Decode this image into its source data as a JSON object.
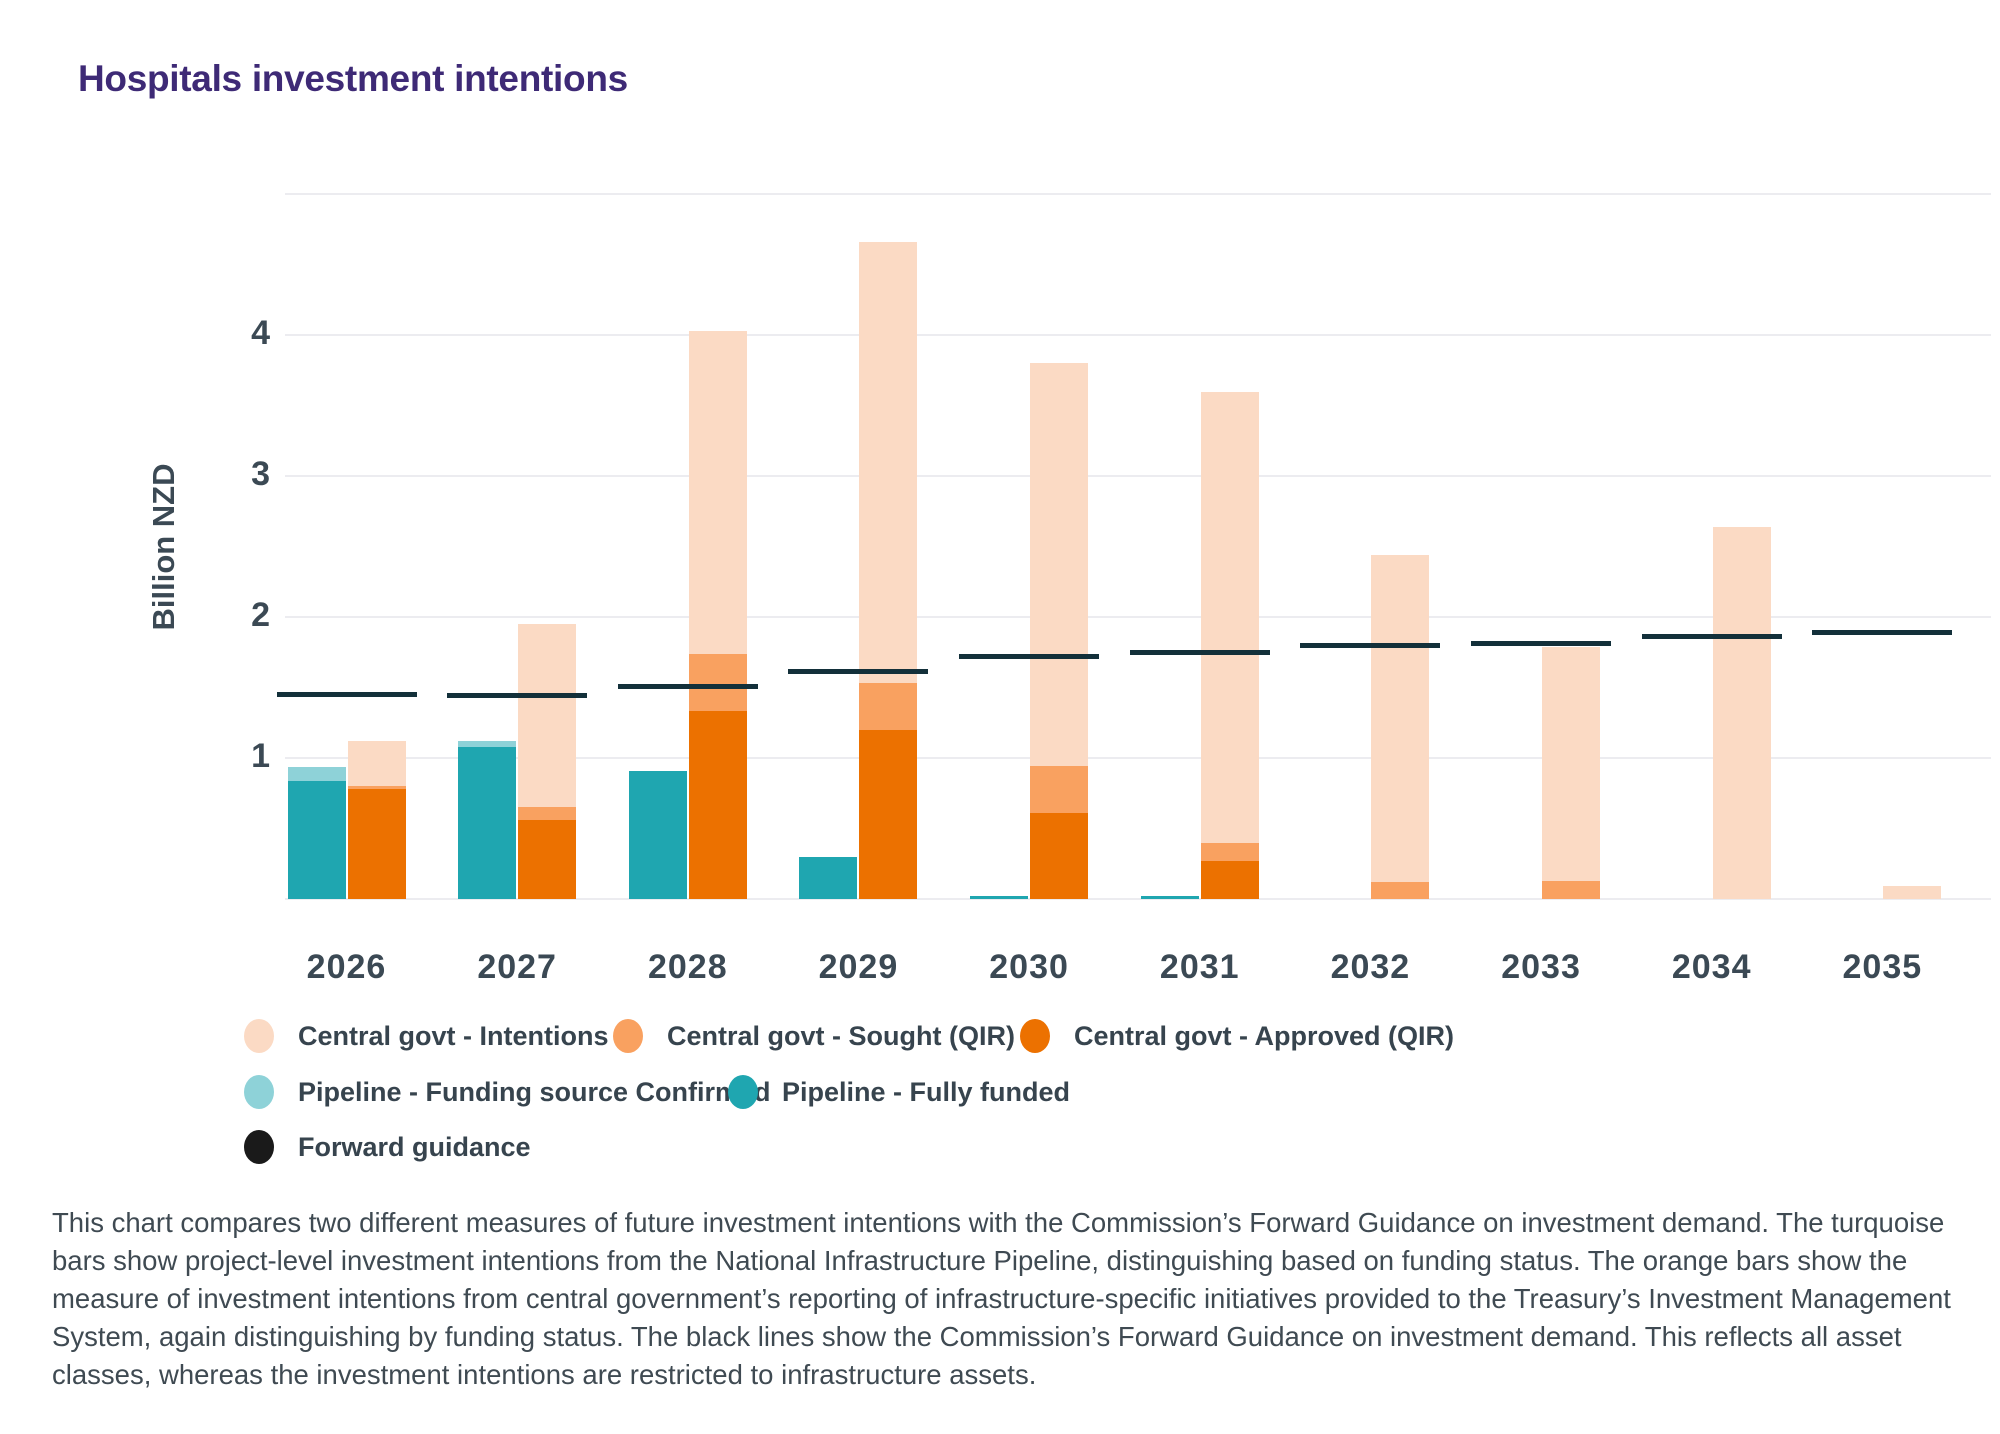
{
  "title": "Hospitals investment intentions",
  "caption": "This chart compares two different measures of future investment intentions with the Commission’s Forward Guidance on investment demand. The turquoise bars show project-level investment intentions from the National Infrastructure Pipeline, distinguishing based on funding status. The orange bars show the measure of investment intentions from central government’s reporting of infrastructure-specific initiatives provided to the Treasury’s Investment Management System, again distinguishing by funding status. The black lines show the Commission’s Forward Guidance on investment demand. This reflects all asset classes, whereas the investment intentions are restricted to infrastructure assets.",
  "chart_data": {
    "type": "bar",
    "title": "Hospitals investment intentions",
    "xlabel": "",
    "ylabel": "Billion NZD",
    "ylim": [
      0,
      5
    ],
    "yticks": [
      1,
      2,
      3,
      4
    ],
    "grid": true,
    "legend_position": "bottom-left",
    "categories": [
      "2026",
      "2027",
      "2028",
      "2029",
      "2030",
      "2031",
      "2032",
      "2033",
      "2034",
      "2035"
    ],
    "bar_layout": "two stacked bars per year: left = Pipeline stack (fully funded bottom, funding source confirmed top), right = Central govt stack (approved bottom, sought middle, intentions top); black horizontal segment per year = forward guidance",
    "series": [
      {
        "name": "Pipeline - Fully funded",
        "stack": "pipeline",
        "color": "#1fa6b0",
        "values": [
          0.84,
          1.08,
          0.91,
          0.3,
          0.02,
          0.02,
          0,
          0,
          0,
          0
        ]
      },
      {
        "name": "Pipeline - Funding source Confirmed",
        "stack": "pipeline",
        "color": "#8ed2d8",
        "values": [
          0.1,
          0.04,
          0,
          0,
          0,
          0,
          0,
          0,
          0,
          0
        ]
      },
      {
        "name": "Central govt - Approved (QIR)",
        "stack": "central",
        "color": "#ec7100",
        "values": [
          0.78,
          0.56,
          1.33,
          1.2,
          0.61,
          0.27,
          0,
          0,
          0,
          0
        ]
      },
      {
        "name": "Central govt - Sought (QIR)",
        "stack": "central",
        "color": "#f9a160",
        "values": [
          0.02,
          0.09,
          0.41,
          0.33,
          0.33,
          0.13,
          0.12,
          0.13,
          0,
          0
        ]
      },
      {
        "name": "Central govt - Intentions",
        "stack": "central",
        "color": "#fbdac4",
        "values": [
          0.32,
          1.3,
          2.29,
          3.13,
          2.86,
          3.2,
          2.32,
          1.66,
          2.64,
          0.09
        ]
      },
      {
        "name": "Forward guidance",
        "stack": "line",
        "color": "#13303a",
        "values": [
          1.45,
          1.44,
          1.51,
          1.61,
          1.72,
          1.75,
          1.8,
          1.81,
          1.86,
          1.89
        ]
      }
    ]
  },
  "legend": {
    "rows": [
      [
        {
          "label": "Central govt - Intentions",
          "color": "#fbdac4",
          "shape": "circle"
        },
        {
          "label": "Central govt - Sought (QIR)",
          "color": "#f9a160",
          "shape": "circle"
        },
        {
          "label": "Central govt - Approved (QIR)",
          "color": "#ec7100",
          "shape": "circle"
        }
      ],
      [
        {
          "label": "Pipeline - Funding source Confirmed",
          "color": "#8ed2d8",
          "shape": "circle"
        },
        {
          "label": "Pipeline - Fully funded",
          "color": "#1fa6b0",
          "shape": "circle"
        }
      ],
      [
        {
          "label": "Forward guidance",
          "color": "#1a1a1a",
          "shape": "circle"
        }
      ]
    ]
  },
  "colors": {
    "title": "#3e2a76",
    "axis_text": "#3b4954",
    "gridline": "#ececf0",
    "guidance_line": "#13303a",
    "background": "#ffffff"
  }
}
